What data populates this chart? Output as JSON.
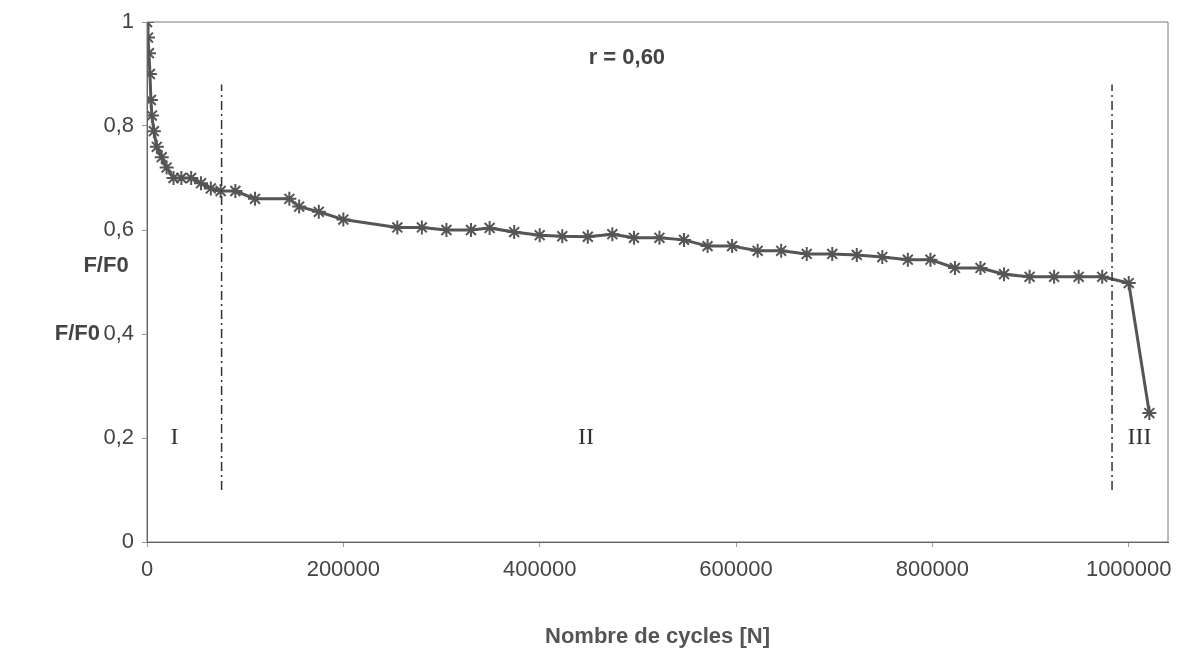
{
  "chart_data": {
    "type": "line",
    "xlabel": "Nombre de cycles [N]",
    "ylabel": "F/F0",
    "annotations": [
      "F/F0",
      "r = 0,60",
      "I",
      "II",
      "III"
    ],
    "x": [
      0,
      1000,
      2000,
      3000,
      4000,
      5000,
      7000,
      10000,
      15000,
      20000,
      27000,
      35000,
      45000,
      55000,
      65000,
      75000,
      90000,
      110000,
      145000,
      155000,
      175000,
      200000,
      255000,
      280000,
      305000,
      330000,
      349000,
      374000,
      400000,
      423000,
      449000,
      474000,
      496000,
      522000,
      547000,
      571000,
      596000,
      622000,
      646000,
      672000,
      698000,
      723000,
      749000,
      775000,
      798000,
      823000,
      849000,
      873000,
      899000,
      924000,
      949000,
      973000,
      1000000,
      1021000
    ],
    "series": [
      {
        "color": "#555555",
        "values": [
          1.0,
          0.97,
          0.94,
          0.9,
          0.85,
          0.82,
          0.79,
          0.76,
          0.74,
          0.72,
          0.7,
          0.7,
          0.7,
          0.69,
          0.68,
          0.675,
          0.675,
          0.66,
          0.66,
          0.645,
          0.635,
          0.62,
          0.605,
          0.605,
          0.6,
          0.6,
          0.604,
          0.596,
          0.59,
          0.588,
          0.587,
          0.592,
          0.585,
          0.585,
          0.581,
          0.569,
          0.569,
          0.56,
          0.56,
          0.554,
          0.554,
          0.552,
          0.548,
          0.543,
          0.543,
          0.527,
          0.527,
          0.515,
          0.51,
          0.51,
          0.51,
          0.51,
          0.498,
          0.248
        ]
      }
    ],
    "xlim": [
      0,
      1040000
    ],
    "xticks": [
      0,
      200000,
      400000,
      600000,
      800000,
      1000000
    ],
    "ylim": [
      0,
      1
    ],
    "yticks": [
      0,
      {
        "value": 0.2,
        "label": "0,2"
      },
      {
        "value": 0.4,
        "label": "0,4"
      },
      {
        "value": 0.6,
        "label": "0,6"
      },
      {
        "value": 0.8,
        "label": "0,8"
      },
      1
    ],
    "ref_lines": [
      {
        "axis": "x",
        "value": 76000,
        "color": "#333333",
        "line_style": "dashed"
      },
      {
        "axis": "x",
        "value": 983000,
        "color": "#333333",
        "line_style": "dashed"
      }
    ],
    "grid": false,
    "legend": false,
    "marker": "cross",
    "line_style": "solid"
  }
}
